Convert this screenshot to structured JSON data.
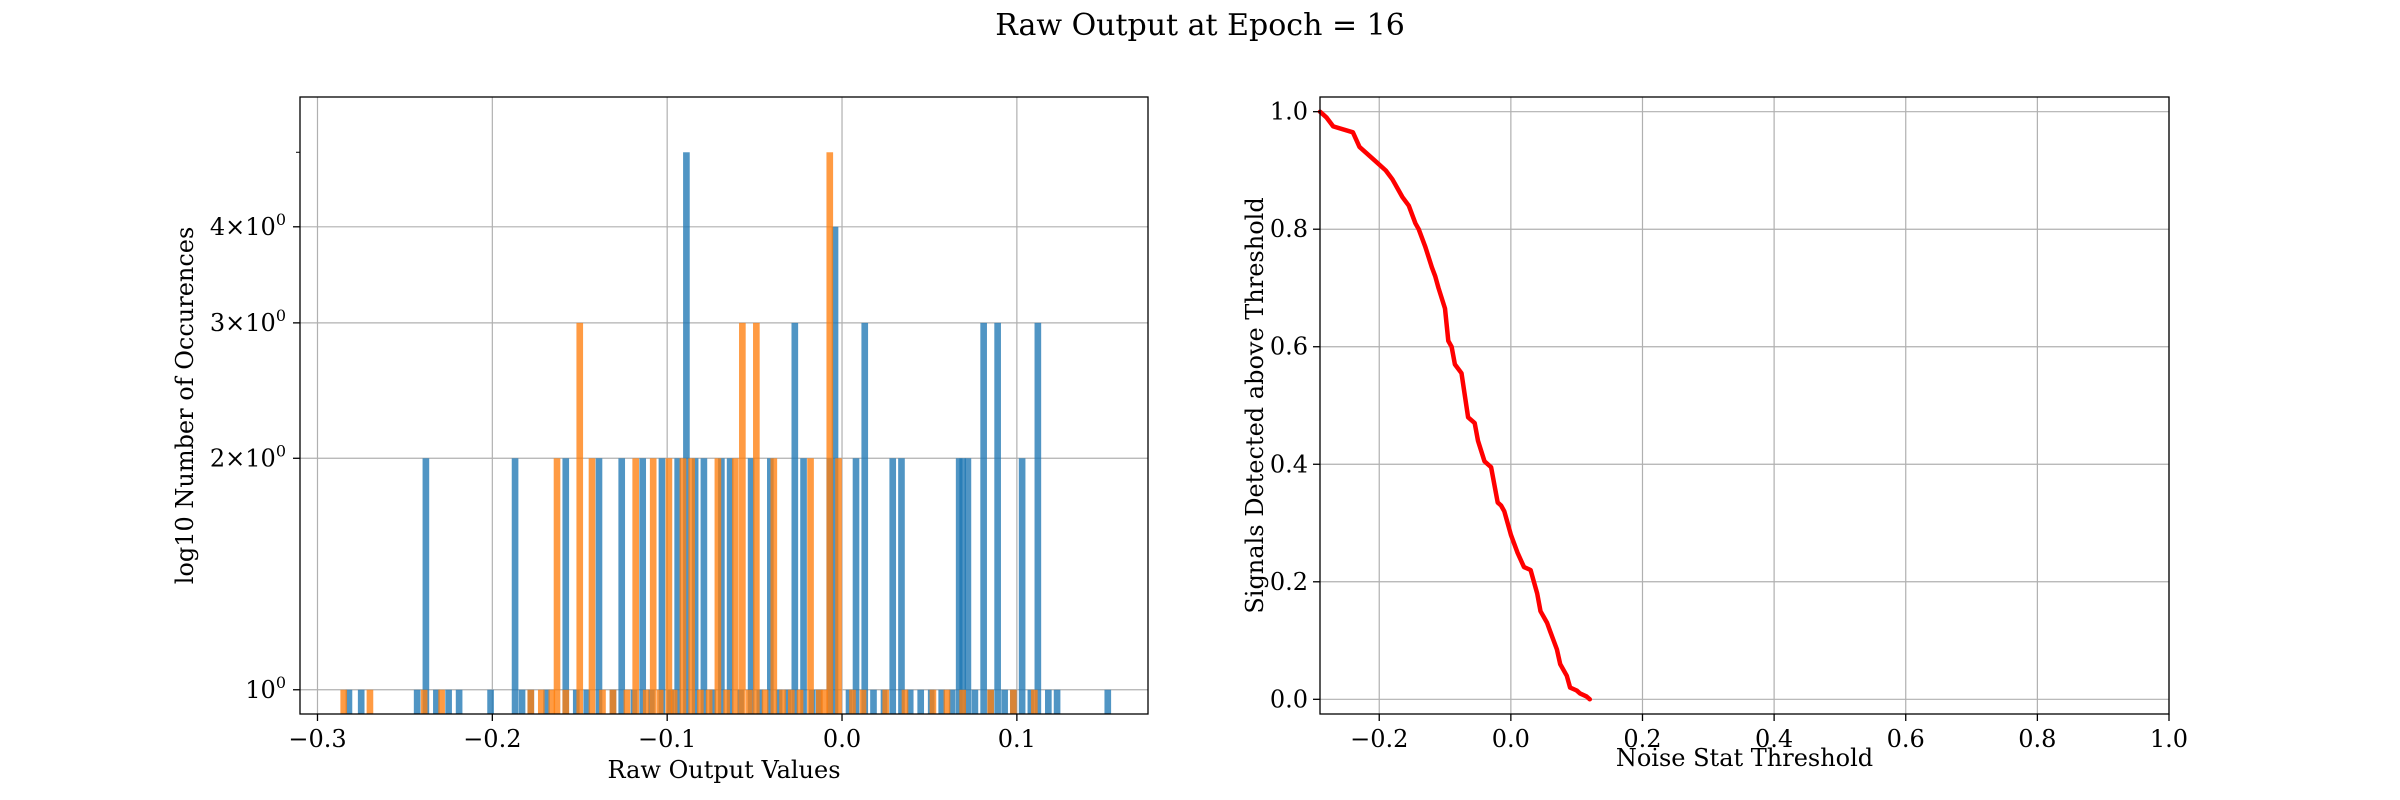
{
  "figure_title": "Raw Output at Epoch = 16",
  "chart_data": [
    {
      "type": "bar",
      "subtype": "histogram",
      "xlabel": "Raw Output Values",
      "ylabel": "log10 Number of Occurences",
      "xlim": [
        -0.31,
        0.175
      ],
      "ylim": [
        0.93,
        5.9
      ],
      "yscale": "log",
      "grid": true,
      "xticks": [
        -0.3,
        -0.2,
        -0.1,
        0.0,
        0.1
      ],
      "xtick_labels": [
        "−0.3",
        "−0.2",
        "−0.1",
        "0.0",
        "0.1"
      ],
      "yticks": [
        1,
        2,
        3,
        4
      ],
      "ytick_labels": [
        {
          "base": "10",
          "mult": "",
          "exp": "0"
        },
        {
          "base": "10",
          "mult": "2×",
          "exp": "0"
        },
        {
          "base": "10",
          "mult": "3×",
          "exp": "0"
        },
        {
          "base": "10",
          "mult": "4×",
          "exp": "0"
        }
      ],
      "bar_width": 0.0038,
      "series": [
        {
          "color": "#1f77b4",
          "alpha": 0.78,
          "bins": [
            [
              -0.282,
              1
            ],
            [
              -0.275,
              1
            ],
            [
              -0.243,
              1
            ],
            [
              -0.238,
              2
            ],
            [
              -0.232,
              1
            ],
            [
              -0.225,
              1
            ],
            [
              -0.219,
              1
            ],
            [
              -0.201,
              1
            ],
            [
              -0.187,
              2
            ],
            [
              -0.183,
              1
            ],
            [
              -0.178,
              1
            ],
            [
              -0.169,
              1
            ],
            [
              -0.158,
              2
            ],
            [
              -0.152,
              1
            ],
            [
              -0.146,
              1
            ],
            [
              -0.139,
              2
            ],
            [
              -0.131,
              1
            ],
            [
              -0.126,
              2
            ],
            [
              -0.119,
              1
            ],
            [
              -0.114,
              2
            ],
            [
              -0.109,
              1
            ],
            [
              -0.103,
              2
            ],
            [
              -0.098,
              1
            ],
            [
              -0.094,
              2
            ],
            [
              -0.089,
              5
            ],
            [
              -0.084,
              2
            ],
            [
              -0.079,
              2
            ],
            [
              -0.074,
              1
            ],
            [
              -0.069,
              2
            ],
            [
              -0.064,
              2
            ],
            [
              -0.058,
              1
            ],
            [
              -0.052,
              2
            ],
            [
              -0.047,
              1
            ],
            [
              -0.041,
              2
            ],
            [
              -0.036,
              1
            ],
            [
              -0.031,
              1
            ],
            [
              -0.027,
              3
            ],
            [
              -0.022,
              2
            ],
            [
              -0.017,
              1
            ],
            [
              -0.013,
              1
            ],
            [
              -0.007,
              2
            ],
            [
              -0.004,
              4
            ],
            [
              0.004,
              1
            ],
            [
              0.008,
              2
            ],
            [
              0.013,
              3
            ],
            [
              0.018,
              1
            ],
            [
              0.024,
              1
            ],
            [
              0.029,
              2
            ],
            [
              0.034,
              2
            ],
            [
              0.039,
              1
            ],
            [
              0.045,
              1
            ],
            [
              0.051,
              1
            ],
            [
              0.057,
              1
            ],
            [
              0.063,
              1
            ],
            [
              0.067,
              2
            ],
            [
              0.069,
              2
            ],
            [
              0.072,
              2
            ],
            [
              0.076,
              1
            ],
            [
              0.081,
              3
            ],
            [
              0.085,
              1
            ],
            [
              0.089,
              3
            ],
            [
              0.093,
              1
            ],
            [
              0.098,
              1
            ],
            [
              0.103,
              2
            ],
            [
              0.108,
              1
            ],
            [
              0.112,
              3
            ],
            [
              0.118,
              1
            ],
            [
              0.123,
              1
            ],
            [
              0.152,
              1
            ]
          ]
        },
        {
          "color": "#ff7f0e",
          "alpha": 0.78,
          "bins": [
            [
              -0.285,
              1
            ],
            [
              -0.27,
              1
            ],
            [
              -0.239,
              1
            ],
            [
              -0.229,
              1
            ],
            [
              -0.178,
              1
            ],
            [
              -0.172,
              1
            ],
            [
              -0.166,
              1
            ],
            [
              -0.163,
              2
            ],
            [
              -0.158,
              1
            ],
            [
              -0.15,
              3
            ],
            [
              -0.143,
              2
            ],
            [
              -0.137,
              1
            ],
            [
              -0.131,
              1
            ],
            [
              -0.123,
              1
            ],
            [
              -0.118,
              2
            ],
            [
              -0.112,
              1
            ],
            [
              -0.108,
              2
            ],
            [
              -0.104,
              1
            ],
            [
              -0.099,
              2
            ],
            [
              -0.096,
              1
            ],
            [
              -0.091,
              2
            ],
            [
              -0.086,
              2
            ],
            [
              -0.081,
              1
            ],
            [
              -0.076,
              1
            ],
            [
              -0.071,
              2
            ],
            [
              -0.066,
              1
            ],
            [
              -0.061,
              2
            ],
            [
              -0.057,
              3
            ],
            [
              -0.053,
              1
            ],
            [
              -0.049,
              3
            ],
            [
              -0.044,
              1
            ],
            [
              -0.039,
              2
            ],
            [
              -0.034,
              1
            ],
            [
              -0.029,
              1
            ],
            [
              -0.024,
              1
            ],
            [
              -0.018,
              2
            ],
            [
              -0.013,
              1
            ],
            [
              -0.01,
              1
            ],
            [
              -0.007,
              5
            ],
            [
              -0.002,
              2
            ],
            [
              0.006,
              1
            ],
            [
              0.012,
              1
            ],
            [
              0.025,
              1
            ],
            [
              0.036,
              1
            ],
            [
              0.052,
              1
            ],
            [
              0.06,
              1
            ],
            [
              0.069,
              1
            ],
            [
              0.085,
              1
            ],
            [
              0.098,
              1
            ],
            [
              0.11,
              1
            ]
          ]
        }
      ]
    },
    {
      "type": "line",
      "xlabel": "Noise Stat Threshold",
      "ylabel": "Signals Detected above Threshold",
      "xlim": [
        -0.29,
        1.0
      ],
      "ylim": [
        -0.025,
        1.025
      ],
      "grid": true,
      "xticks": [
        -0.2,
        0.0,
        0.2,
        0.4,
        0.6,
        0.8,
        1.0
      ],
      "xtick_labels": [
        "−0.2",
        "0.0",
        "0.2",
        "0.4",
        "0.6",
        "0.8",
        "1.0"
      ],
      "yticks": [
        0.0,
        0.2,
        0.4,
        0.6,
        0.8,
        1.0
      ],
      "ytick_labels": [
        "0.0",
        "0.2",
        "0.4",
        "0.6",
        "0.8",
        "1.0"
      ],
      "series": [
        {
          "color": "#ff0000",
          "x": [
            -0.29,
            -0.28,
            -0.27,
            -0.24,
            -0.23,
            -0.22,
            -0.205,
            -0.19,
            -0.18,
            -0.17,
            -0.165,
            -0.155,
            -0.145,
            -0.14,
            -0.13,
            -0.12,
            -0.115,
            -0.11,
            -0.1,
            -0.095,
            -0.09,
            -0.085,
            -0.075,
            -0.065,
            -0.055,
            -0.05,
            -0.04,
            -0.03,
            -0.02,
            -0.015,
            -0.01,
            -0.005,
            0.0,
            0.01,
            0.02,
            0.03,
            0.035,
            0.04,
            0.045,
            0.055,
            0.06,
            0.065,
            0.07,
            0.075,
            0.085,
            0.09,
            0.1,
            0.105,
            0.115,
            0.12
          ],
          "y": [
            1.0,
            0.99,
            0.975,
            0.965,
            0.94,
            0.93,
            0.915,
            0.9,
            0.885,
            0.865,
            0.855,
            0.84,
            0.81,
            0.8,
            0.77,
            0.735,
            0.72,
            0.7,
            0.665,
            0.61,
            0.6,
            0.57,
            0.555,
            0.48,
            0.47,
            0.44,
            0.405,
            0.395,
            0.335,
            0.33,
            0.32,
            0.3,
            0.28,
            0.25,
            0.225,
            0.22,
            0.2,
            0.18,
            0.15,
            0.13,
            0.115,
            0.1,
            0.085,
            0.06,
            0.04,
            0.02,
            0.015,
            0.01,
            0.005,
            0.0
          ]
        }
      ]
    }
  ]
}
